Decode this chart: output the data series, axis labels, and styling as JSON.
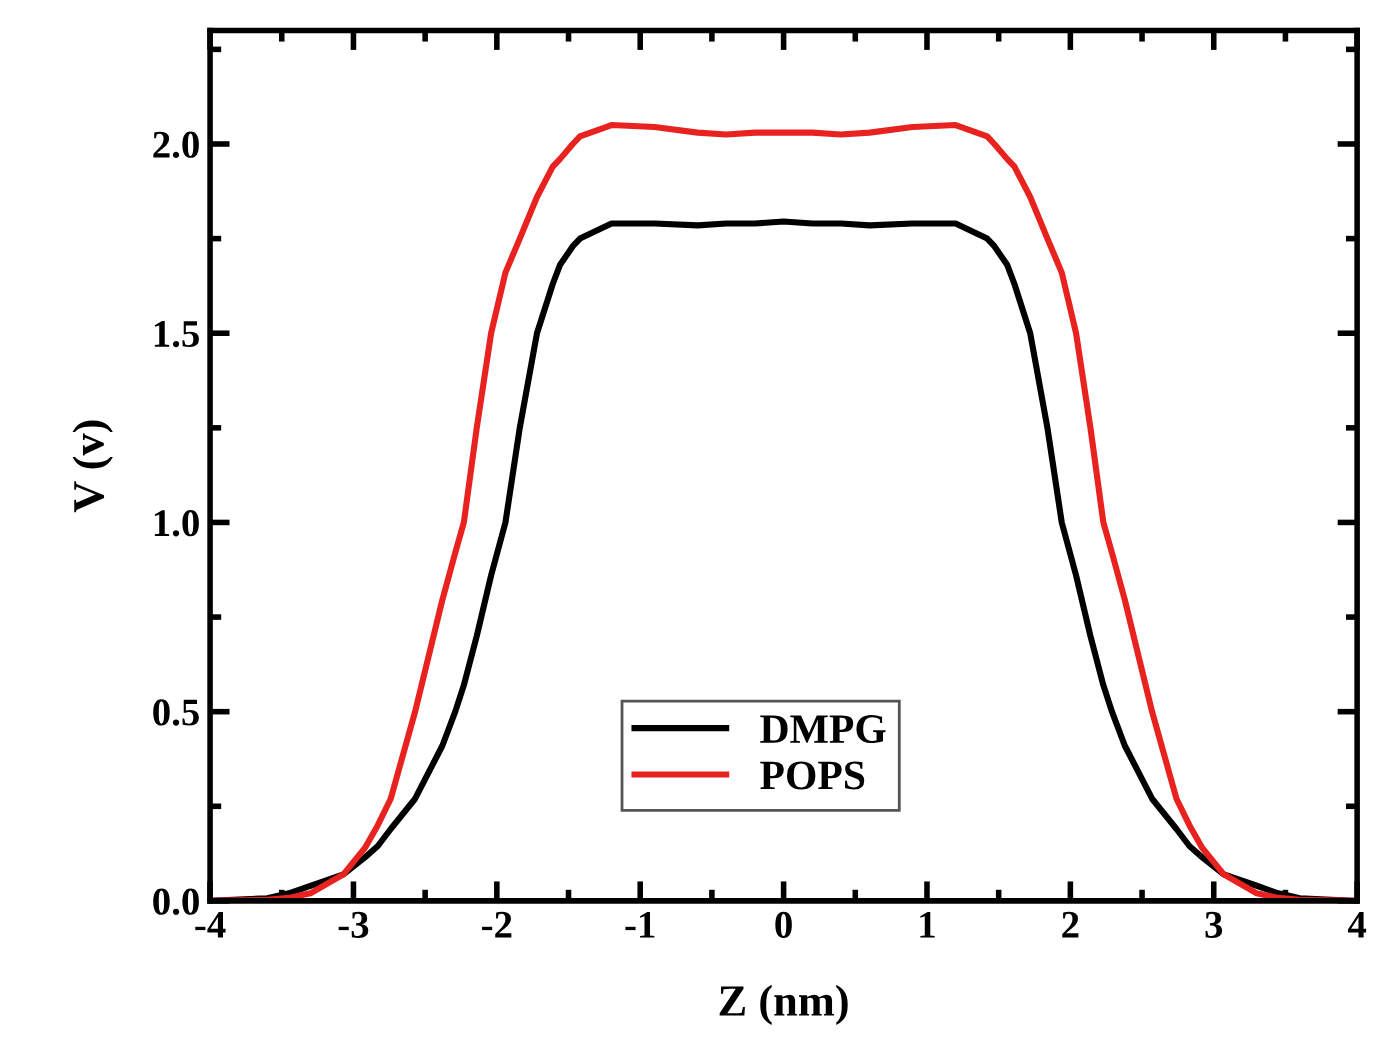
{
  "chart_data": {
    "type": "line",
    "xlabel": "Z (nm)",
    "ylabel": "V (v)",
    "x": [
      -4,
      -3.6,
      -3.45,
      -3.3,
      -3.07,
      -2.92,
      -2.83,
      -2.74,
      -2.57,
      -2.38,
      -2.29,
      -2.23,
      -2.14,
      -2.04,
      -1.94,
      -1.84,
      -1.72,
      -1.61,
      -1.56,
      -1.47,
      -1.42,
      -1.2,
      -0.9,
      -0.6,
      -0.4,
      -0.2,
      0,
      0.2,
      0.4,
      0.6,
      0.9,
      1.2,
      1.42,
      1.47,
      1.56,
      1.61,
      1.72,
      1.84,
      1.94,
      2.04,
      2.14,
      2.23,
      2.29,
      2.38,
      2.57,
      2.74,
      2.83,
      2.92,
      3.07,
      3.3,
      3.45,
      3.6,
      4
    ],
    "series": [
      {
        "name": "DMPG",
        "color": "#000000",
        "values": [
          0,
          0.007,
          0.02,
          0.04,
          0.07,
          0.115,
          0.145,
          0.19,
          0.27,
          0.41,
          0.5,
          0.57,
          0.7,
          0.86,
          1.0,
          1.25,
          1.5,
          1.63,
          1.68,
          1.73,
          1.75,
          1.79,
          1.79,
          1.785,
          1.79,
          1.79,
          1.795,
          1.79,
          1.79,
          1.785,
          1.79,
          1.79,
          1.75,
          1.73,
          1.68,
          1.63,
          1.5,
          1.25,
          1.0,
          0.86,
          0.7,
          0.57,
          0.5,
          0.41,
          0.27,
          0.19,
          0.145,
          0.115,
          0.07,
          0.04,
          0.02,
          0.007,
          0
        ]
      },
      {
        "name": "POPS",
        "color": "#e8231f",
        "values": [
          0,
          0.003,
          0.008,
          0.02,
          0.07,
          0.14,
          0.2,
          0.27,
          0.5,
          0.795,
          0.92,
          1.0,
          1.25,
          1.5,
          1.66,
          1.75,
          1.86,
          1.94,
          1.96,
          2.0,
          2.02,
          2.05,
          2.045,
          2.03,
          2.025,
          2.03,
          2.03,
          2.03,
          2.025,
          2.03,
          2.045,
          2.05,
          2.02,
          2.0,
          1.96,
          1.94,
          1.86,
          1.75,
          1.66,
          1.5,
          1.25,
          1.0,
          0.92,
          0.795,
          0.5,
          0.27,
          0.2,
          0.14,
          0.07,
          0.02,
          0.008,
          0.003,
          0
        ]
      }
    ],
    "xlim": [
      -4,
      4
    ],
    "xticks": [
      -4,
      -3,
      -2,
      -1,
      0,
      1,
      2,
      3,
      4
    ],
    "ylim": [
      0,
      2.3
    ],
    "yticks": [
      {
        "value": 0,
        "label": "0.0"
      },
      0.5,
      {
        "value": 1,
        "label": "1.0"
      },
      1.5,
      {
        "value": 2,
        "label": "2.0"
      }
    ],
    "legend": "bottom",
    "grid": false,
    "marker": "none",
    "line_style": "solid"
  }
}
